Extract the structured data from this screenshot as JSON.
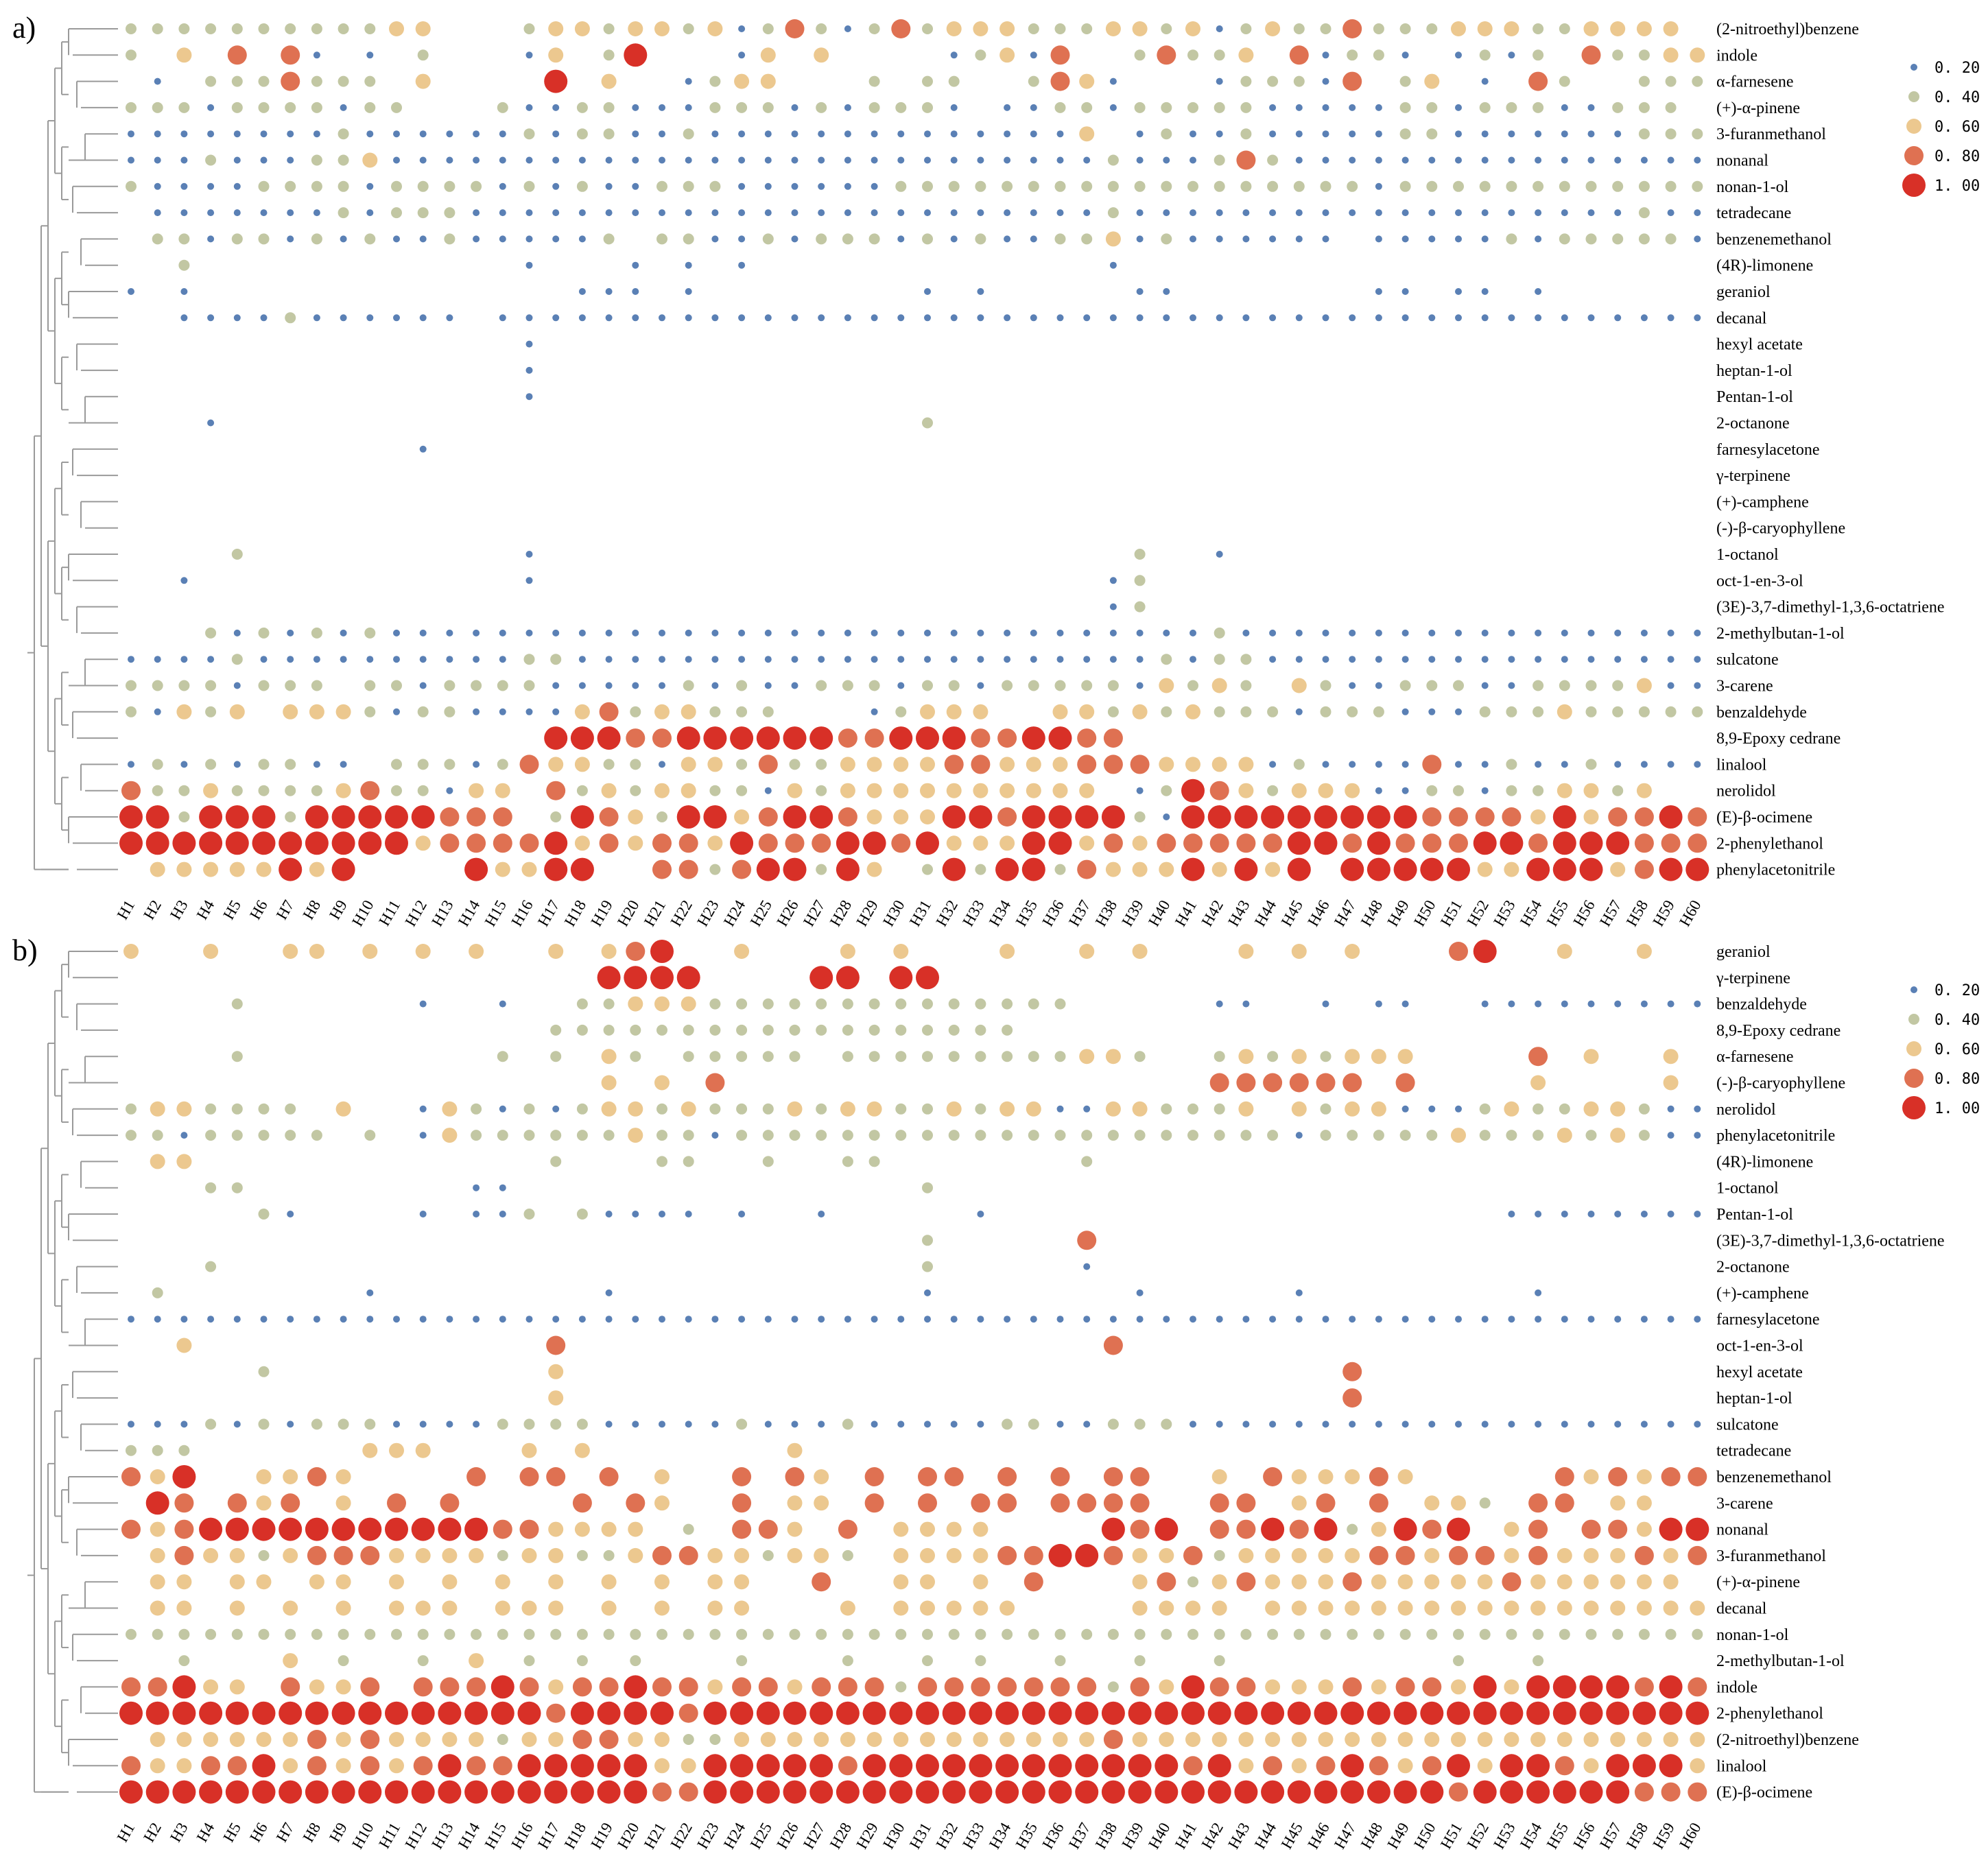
{
  "chart_data": [
    {
      "type": "bubble-heatmap",
      "panel_label": "a)",
      "columns": [
        "H1",
        "H2",
        "H3",
        "H4",
        "H5",
        "H6",
        "H7",
        "H8",
        "H9",
        "H10",
        "H11",
        "H12",
        "H13",
        "H14",
        "H15",
        "H16",
        "H17",
        "H18",
        "H19",
        "H20",
        "H21",
        "H22",
        "H23",
        "H24",
        "H25",
        "H26",
        "H27",
        "H28",
        "H29",
        "H30",
        "H31",
        "H32",
        "H33",
        "H34",
        "H35",
        "H36",
        "H37",
        "H38",
        "H39",
        "H40",
        "H41",
        "H42",
        "H43",
        "H44",
        "H45",
        "H46",
        "H47",
        "H48",
        "H49",
        "H50",
        "H51",
        "H52",
        "H53",
        "H54",
        "H55",
        "H56",
        "H57",
        "H58",
        "H59",
        "H60"
      ],
      "rows": [
        "(2-nitroethyl)benzene",
        "indole",
        "α-farnesene",
        "(+)-α-pinene",
        "3-furanmethanol",
        "nonanal",
        "nonan-1-ol",
        "tetradecane",
        "benzenemethanol",
        "(4R)-limonene",
        "geraniol",
        "decanal",
        "hexyl acetate",
        "heptan-1-ol",
        "Pentan-1-ol",
        "2-octanone",
        "farnesylacetone",
        "γ-terpinene",
        "(+)-camphene",
        "(-)-β-caryophyllene",
        "1-octanol",
        "oct-1-en-3-ol",
        "(3E)-3,7-dimethyl-1,3,6-octatriene",
        "2-methylbutan-1-ol",
        "sulcatone",
        "3-carene",
        "benzaldehyde",
        "8,9-Epoxy cedrane",
        "linalool",
        "nerolidol",
        "(E)-β-ocimene",
        "2-phenylethanol",
        "phenylacetonitrile"
      ],
      "values": [
        "222222222233000233233231242124233322233231232242223332233330",
        "203040410102000130250001303000012314002422304122101212042233",
        "010222422203000050300123300020220024310001222140230104200222",
        "222122221220002112211122212122210112212222211111221222112220",
        "111111112111111212211211111111111111301211211111221111111222",
        "111211122311111111111111111111111111121112421111111111111111",
        "211112222122221212112221111112222222222222222221222222222222",
        "011111112122211111111111111111111111121111111111111111111211",
        "022122121211211111202211212221212112231211111101111121222221",
        "002000000000000100010101000000000000010000000000000000000000",
        "101000000000000001110100000000101000001100000001101101000000",
        "001111211111101111111111111111111111111111111111111111111111",
        "000000000000000100000000000000000000000000000000000000000000",
        "000000000000000100000000000000000000000000000000000000000000",
        "000000000000000100000000000000000000000000000000000000000000",
        "000100000000000000000000000000200000000000000000000000000000",
        "000000000001000000000000000000000000000000000000000000000000",
        "000000000000000000000000000000000000000000000000000000000000",
        "000000000000000000000000000000000000000000000000000000000000",
        "000000000000000000000000000000000000000000000000000000000000",
        "000020000000000100000000000000000000002001000000000000000000",
        "001000000000000100000000000000000000012000000000000000000000",
        "000000000000000000000000000000000000012000000000000000000000",
        "000212121211111111111111111111111111111112111111111111111111",
        "111121111111111221111111111111111111111212211111111111111111",
        "222212220221222211111212112221221222221323203211222112222311",
        "213230333212211113423322200012333003323232221222111222322222",
        "000000000000000055544555555445554455440000000000000000000000",
        "121212211022212433221332422333344333444333312111141121121111",
        "422322223422133042323322132333333333301254323331122122332300",
        "552555255555444025432553455433355455552155555555544443534454",
        "555555555553444453434435444554533355343444445545444554555444",
        "033333535000053355004424552530252552433353535055555335553455"
      ]
    },
    {
      "type": "bubble-heatmap",
      "panel_label": "b)",
      "columns": [
        "H1",
        "H2",
        "H3",
        "H4",
        "H5",
        "H6",
        "H7",
        "H8",
        "H9",
        "H10",
        "H11",
        "H12",
        "H13",
        "H14",
        "H15",
        "H16",
        "H17",
        "H18",
        "H19",
        "H20",
        "H21",
        "H22",
        "H23",
        "H24",
        "H25",
        "H26",
        "H27",
        "H28",
        "H29",
        "H30",
        "H31",
        "H32",
        "H33",
        "H34",
        "H35",
        "H36",
        "H37",
        "H38",
        "H39",
        "H40",
        "H41",
        "H42",
        "H43",
        "H44",
        "H45",
        "H46",
        "H47",
        "H48",
        "H49",
        "H50",
        "H51",
        "H52",
        "H53",
        "H54",
        "H55",
        "H56",
        "H57",
        "H58",
        "H59",
        "H60"
      ],
      "rows": [
        "geraniol",
        "γ-terpinene",
        "benzaldehyde",
        "8,9-Epoxy cedrane",
        "α-farnesene",
        "(-)-β-caryophyllene",
        "nerolidol",
        "phenylacetonitrile",
        "(4R)-limonene",
        "1-octanol",
        "Pentan-1-ol",
        "(3E)-3,7-dimethyl-1,3,6-octatriene",
        "2-octanone",
        "(+)-camphene",
        "farnesylacetone",
        "oct-1-en-3-ol",
        "hexyl acetate",
        "heptan-1-ol",
        "sulcatone",
        "tetradecane",
        "benzenemethanol",
        "3-carene",
        "nonanal",
        "3-furanmethanol",
        "(+)-α-pinene",
        "decanal",
        "nonan-1-ol",
        "2-methylbutan-1-ol",
        "indole",
        "2-phenylethanol",
        "(2-nitroethyl)benzene",
        "linalool",
        "(E)-β-ocimene"
      ],
      "values": [
        "300300330303030030345003000303000300303000303030004500300300",
        "000000000000000000555500005505500000000000000000000000000000",
        "000020000001001002233322222222222222000001100101100111111111",
        "000000000000000022222222222222222200000000000000000000000000",
        "000020000000002020320222220222222222332002323233300004030030",
        "000000000000000000303040000000000000000004444440400003000030",
        "233222203001321212332322232332232331133222303233111232233211",
        "221222220201322222232212222222222222222222221222223222323211",
        "033000000000000020002200200220000000200000000000000000000000",
        "000220000000011000000000000000200000000000000000000000000000",
        "000002100001011202111101001000001000000000000000000011111111",
        "000000000000000000000000000000200000400000000000000000000000",
        "000200000000000000000000000000200000100000000000000000000000",
        "020000000100000000100000000000100000001000001000000001000000",
        "111111111111111111111111111111111111111111111111111111111111",
        "003000000000000040000000000000000000040000000000000000000000",
        "000002000000000030000000000000000000000000000040000000000000",
        "000000000000000030000000000000000000000000000040000000000000",
        "111212122211112222111112111211111221122211111111111111111111",
        "222000000333000303000000030000000000000000000000000000000000",
        "435003343000040440403004043040440404044003043334300000434344",
        "054043403040400004043004033040404404444004403404033204403300",
        "434555555555554433330204430403333000054504454523545034044355",
        "034332344433332332234433233203333445543342333334434434333434",
        "033033033030303030303033004003303040003423433343333343333330",
        "033030303033303330303033000303333300003333033333333333333333",
        "222222222222222222222222222222222222222222222222222222222222",
        "002000302002030202020002000200202002002002000000002002000000",
        "445330433404445434454434434442444444424354433343443535555454",
        "555555555555555545555455555555555555555555555555555555555555",
        "033333343433332334433223333333333333343333333333333333333333",
        "433445343434544555553355555455555555555545343454345355435553",
        "555555555555555555554455555555555555555555555555554555555444"
      ]
    }
  ],
  "legend": {
    "entries": [
      "0. 20",
      "0. 40",
      "0. 60",
      "0. 80",
      "1. 00"
    ],
    "colors": [
      "#5a80b5",
      "#c2c7a3",
      "#ecc88f",
      "#df7152",
      "#d83027"
    ]
  }
}
